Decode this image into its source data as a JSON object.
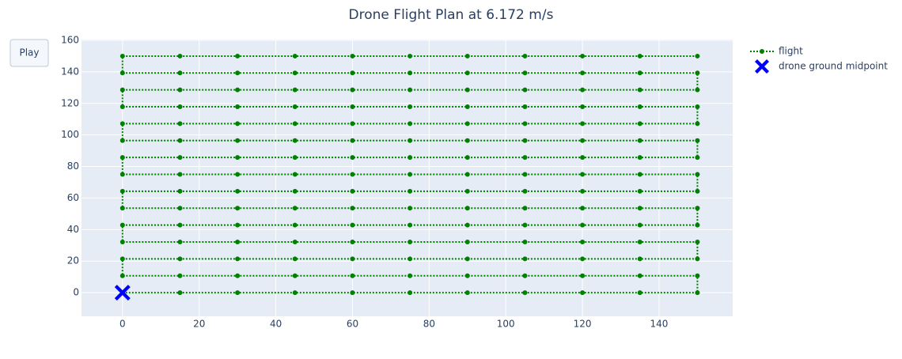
{
  "chart_data": {
    "type": "scatter",
    "title": "Drone Flight Plan at 6.172 m/s",
    "button": "Play",
    "xlim": [
      -10.7,
      159.2
    ],
    "ylim": [
      -15,
      160.5
    ],
    "xticks": [
      0,
      20,
      40,
      60,
      80,
      100,
      120,
      140
    ],
    "yticks": [
      0,
      20,
      40,
      60,
      80,
      100,
      120,
      140,
      160
    ],
    "grid": true,
    "legend": "right",
    "series": [
      {
        "name": "flight",
        "color": "#008000",
        "mode": "lines+markers",
        "line_dash": "dot",
        "x": [
          0,
          15,
          30,
          45,
          60,
          75,
          90,
          105,
          120,
          135,
          150,
          150,
          135,
          120,
          105,
          90,
          75,
          60,
          45,
          30,
          15,
          0,
          0,
          15,
          30,
          45,
          60,
          75,
          90,
          105,
          120,
          135,
          150,
          150,
          135,
          120,
          105,
          90,
          75,
          60,
          45,
          30,
          15,
          0,
          0,
          15,
          30,
          45,
          60,
          75,
          90,
          105,
          120,
          135,
          150,
          150,
          135,
          120,
          105,
          90,
          75,
          60,
          45,
          30,
          15,
          0,
          0,
          15,
          30,
          45,
          60,
          75,
          90,
          105,
          120,
          135,
          150,
          150,
          135,
          120,
          105,
          90,
          75,
          60,
          45,
          30,
          15,
          0,
          0,
          15,
          30,
          45,
          60,
          75,
          90,
          105,
          120,
          135,
          150,
          150,
          135,
          120,
          105,
          90,
          75,
          60,
          45,
          30,
          15,
          0,
          0,
          15,
          30,
          45,
          60,
          75,
          90,
          105,
          120,
          135,
          150,
          150,
          135,
          120,
          105,
          90,
          75,
          60,
          45,
          30,
          15,
          0,
          0,
          15,
          30,
          45,
          60,
          75,
          90,
          105,
          120,
          135,
          150,
          150,
          135,
          120,
          105,
          90,
          75,
          60,
          45,
          30,
          15,
          0,
          0,
          15,
          30,
          45,
          60,
          75,
          90,
          105,
          120,
          135,
          150
        ],
        "y": [
          0,
          0,
          0,
          0,
          0,
          0,
          0,
          0,
          0,
          0,
          0,
          10.714,
          10.714,
          10.714,
          10.714,
          10.714,
          10.714,
          10.714,
          10.714,
          10.714,
          10.714,
          10.714,
          21.429,
          21.429,
          21.429,
          21.429,
          21.429,
          21.429,
          21.429,
          21.429,
          21.429,
          21.429,
          21.429,
          32.143,
          32.143,
          32.143,
          32.143,
          32.143,
          32.143,
          32.143,
          32.143,
          32.143,
          32.143,
          32.143,
          42.857,
          42.857,
          42.857,
          42.857,
          42.857,
          42.857,
          42.857,
          42.857,
          42.857,
          42.857,
          42.857,
          53.571,
          53.571,
          53.571,
          53.571,
          53.571,
          53.571,
          53.571,
          53.571,
          53.571,
          53.571,
          53.571,
          64.286,
          64.286,
          64.286,
          64.286,
          64.286,
          64.286,
          64.286,
          64.286,
          64.286,
          64.286,
          64.286,
          75,
          75,
          75,
          75,
          75,
          75,
          75,
          75,
          75,
          75,
          75,
          85.714,
          85.714,
          85.714,
          85.714,
          85.714,
          85.714,
          85.714,
          85.714,
          85.714,
          85.714,
          85.714,
          96.429,
          96.429,
          96.429,
          96.429,
          96.429,
          96.429,
          96.429,
          96.429,
          96.429,
          96.429,
          96.429,
          107.143,
          107.143,
          107.143,
          107.143,
          107.143,
          107.143,
          107.143,
          107.143,
          107.143,
          107.143,
          107.143,
          117.857,
          117.857,
          117.857,
          117.857,
          117.857,
          117.857,
          117.857,
          117.857,
          117.857,
          117.857,
          117.857,
          128.571,
          128.571,
          128.571,
          128.571,
          128.571,
          128.571,
          128.571,
          128.571,
          128.571,
          128.571,
          128.571,
          139.286,
          139.286,
          139.286,
          139.286,
          139.286,
          139.286,
          139.286,
          139.286,
          139.286,
          139.286,
          139.286,
          150,
          150,
          150,
          150,
          150,
          150,
          150,
          150,
          150,
          150,
          150
        ]
      },
      {
        "name": "drone ground midpoint",
        "color": "#0000ff",
        "mode": "markers",
        "marker": "x",
        "x": [
          0
        ],
        "y": [
          0
        ]
      }
    ]
  }
}
